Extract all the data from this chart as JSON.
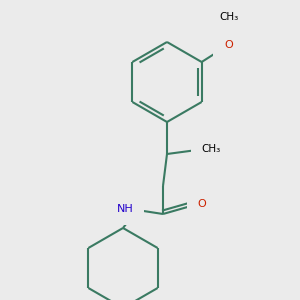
{
  "background_color": "#ebebeb",
  "bond_color": "#3a7a62",
  "bond_width": 1.5,
  "o_color": "#cc2200",
  "n_color": "#2200cc",
  "figsize": [
    3.0,
    3.0
  ],
  "dpi": 100,
  "xlim": [
    0,
    300
  ],
  "ylim": [
    0,
    300
  ]
}
